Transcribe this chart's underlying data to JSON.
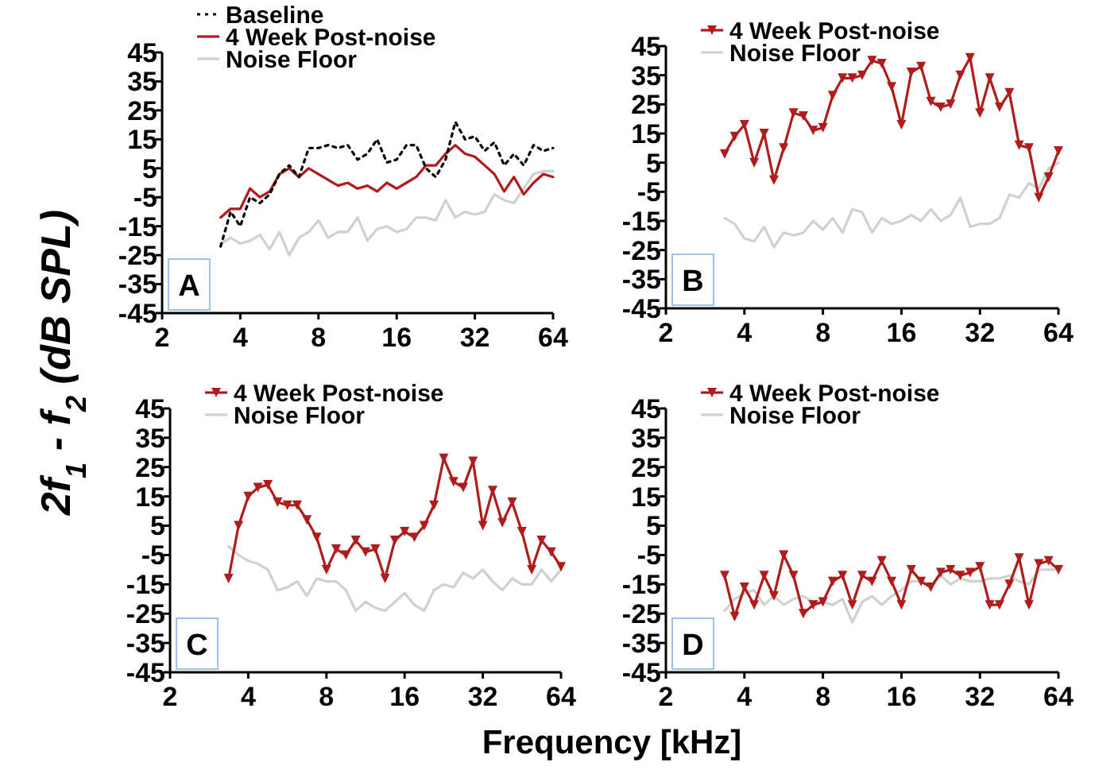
{
  "chart_data": [
    {
      "type": "line",
      "ylabel": "2f$_{1}$ - f$_{2}$ (dB SPL)",
      "annotations": [
        "A"
      ],
      "legend": "top left",
      "grid": false,
      "log": "x",
      "xlim": [
        2,
        64
      ],
      "xticks": [
        2,
        4,
        8,
        16,
        32,
        64
      ],
      "ylim": [
        -45,
        45
      ],
      "yticks": [
        -45,
        -35,
        -25,
        -15,
        -5,
        5,
        15,
        25,
        35,
        45
      ],
      "x": [
        3.36,
        3.67,
        4,
        4.36,
        4.76,
        5.19,
        5.66,
        6.17,
        6.73,
        7.34,
        8,
        8.72,
        9.51,
        10.37,
        11.31,
        12.34,
        13.45,
        14.67,
        16,
        17.45,
        19.03,
        20.75,
        22.63,
        24.68,
        26.91,
        29.34,
        32,
        34.9,
        38.05,
        41.5,
        45.25,
        49.35,
        53.82,
        58.69,
        64
      ],
      "series": [
        {
          "name": "Baseline",
          "color": "#000000",
          "line_style": "dotted",
          "marker": "none",
          "values": [
            -22,
            -10,
            -15,
            -5,
            -7,
            -4,
            3,
            6,
            2,
            12,
            12,
            13,
            12,
            13,
            8,
            10,
            15,
            7,
            8,
            13,
            13,
            5,
            2,
            8,
            21,
            15,
            16,
            11,
            14,
            6,
            10,
            6,
            13,
            11,
            12
          ]
        },
        {
          "name": "4 Week Post-noise",
          "color": "#b01c1c",
          "line_style": "solid",
          "marker": "none",
          "values": [
            -12,
            -9,
            -9,
            -2,
            -5,
            -3,
            3,
            5,
            2,
            5,
            3,
            1,
            -1,
            0,
            -2,
            -1,
            -3,
            0,
            -2,
            0,
            2,
            6,
            6,
            10,
            13,
            10,
            9,
            6,
            3,
            -3,
            2,
            -4,
            0,
            3,
            2
          ]
        },
        {
          "name": "Noise Floor",
          "color": "#d0d0d0",
          "line_style": "solid",
          "marker": "none",
          "values": [
            -21,
            -19,
            -21,
            -20,
            -18,
            -23,
            -17,
            -25,
            -19,
            -17,
            -13,
            -19,
            -17,
            -17,
            -12,
            -20,
            -16,
            -15,
            -17,
            -16,
            -12,
            -12,
            -13,
            -6,
            -12,
            -10,
            -11,
            -10,
            -4,
            -6,
            -7,
            -2,
            3,
            4,
            4
          ]
        }
      ]
    },
    {
      "type": "line",
      "annotations": [
        "B"
      ],
      "legend": "top left",
      "grid": false,
      "log": "x",
      "xlim": [
        2,
        64
      ],
      "xticks": [
        2,
        4,
        8,
        16,
        32,
        64
      ],
      "ylim": [
        -45,
        45
      ],
      "yticks": [
        -45,
        -35,
        -25,
        -15,
        -5,
        5,
        15,
        25,
        35,
        45
      ],
      "x": [
        3.36,
        3.67,
        4,
        4.36,
        4.76,
        5.19,
        5.66,
        6.17,
        6.73,
        7.34,
        8,
        8.72,
        9.51,
        10.37,
        11.31,
        12.34,
        13.45,
        14.67,
        16,
        17.45,
        19.03,
        20.75,
        22.63,
        24.68,
        26.91,
        29.34,
        32,
        34.9,
        38.05,
        41.5,
        45.25,
        49.35,
        53.82,
        58.69,
        64
      ],
      "series": [
        {
          "name": "4 Week Post-noise",
          "color": "#b01c1c",
          "line_style": "solid",
          "marker": "triangle",
          "values": [
            8,
            14,
            18,
            5,
            15,
            -1,
            10,
            22,
            21,
            16,
            17,
            28,
            34,
            34,
            35,
            40,
            39,
            31,
            18,
            36,
            38,
            26,
            24,
            25,
            35,
            41,
            22,
            34,
            24,
            29,
            11,
            10,
            -7,
            0,
            9
          ]
        },
        {
          "name": "Noise Floor",
          "color": "#d0d0d0",
          "line_style": "solid",
          "marker": "none",
          "values": [
            -14,
            -16,
            -21,
            -22,
            -17,
            -24,
            -19,
            -20,
            -19,
            -15,
            -18,
            -14,
            -19,
            -11,
            -12,
            -19,
            -14,
            -16,
            -15,
            -13,
            -15,
            -11,
            -15,
            -13,
            -7,
            -17,
            -16,
            -16,
            -14,
            -6,
            -7,
            -2,
            -4,
            3,
            5
          ]
        }
      ]
    },
    {
      "type": "line",
      "xlabel": "Frequency [kHz]",
      "annotations": [
        "C"
      ],
      "legend": "top left",
      "grid": false,
      "log": "x",
      "xlim": [
        2,
        64
      ],
      "xticks": [
        2,
        4,
        8,
        16,
        32,
        64
      ],
      "ylim": [
        -45,
        45
      ],
      "yticks": [
        -45,
        -35,
        -25,
        -15,
        -5,
        5,
        15,
        25,
        35,
        45
      ],
      "x": [
        3.36,
        3.67,
        4,
        4.36,
        4.76,
        5.19,
        5.66,
        6.17,
        6.73,
        7.34,
        8,
        8.72,
        9.51,
        10.37,
        11.31,
        12.34,
        13.45,
        14.67,
        16,
        17.45,
        19.03,
        20.75,
        22.63,
        24.68,
        26.91,
        29.34,
        32,
        34.9,
        38.05,
        41.5,
        45.25,
        49.35,
        53.82,
        58.69,
        64
      ],
      "series": [
        {
          "name": "4 Week Post-noise",
          "color": "#b01c1c",
          "line_style": "solid",
          "marker": "triangle",
          "values": [
            -13,
            5,
            15,
            18,
            19,
            13,
            12,
            12,
            7,
            1,
            -10,
            -3,
            -5,
            0,
            -4,
            -3,
            -13,
            0,
            3,
            1,
            5,
            12,
            28,
            20,
            18,
            27,
            5,
            17,
            6,
            13,
            3,
            -10,
            0,
            -4,
            -9
          ]
        },
        {
          "name": "Noise Floor",
          "color": "#d0d0d0",
          "line_style": "solid",
          "marker": "none",
          "values": [
            -2,
            -5,
            -7,
            -8,
            -10,
            -17,
            -16,
            -14,
            -19,
            -13,
            -14,
            -14,
            -17,
            -24,
            -21,
            -23,
            -24,
            -21,
            -18,
            -22,
            -24,
            -17,
            -15,
            -16,
            -11,
            -13,
            -10,
            -14,
            -17,
            -13,
            -15,
            -15,
            -10,
            -14,
            -10
          ]
        }
      ]
    },
    {
      "type": "line",
      "annotations": [
        "D"
      ],
      "legend": "top left",
      "grid": false,
      "log": "x",
      "xlim": [
        2,
        64
      ],
      "xticks": [
        2,
        4,
        8,
        16,
        32,
        64
      ],
      "ylim": [
        -45,
        45
      ],
      "yticks": [
        -45,
        -35,
        -25,
        -15,
        -5,
        5,
        15,
        25,
        35,
        45
      ],
      "x": [
        3.36,
        3.67,
        4,
        4.36,
        4.76,
        5.19,
        5.66,
        6.17,
        6.73,
        7.34,
        8,
        8.72,
        9.51,
        10.37,
        11.31,
        12.34,
        13.45,
        14.67,
        16,
        17.45,
        19.03,
        20.75,
        22.63,
        24.68,
        26.91,
        29.34,
        32,
        34.9,
        38.05,
        41.5,
        45.25,
        49.35,
        53.82,
        58.69,
        64
      ],
      "series": [
        {
          "name": "4 Week Post-noise",
          "color": "#b01c1c",
          "line_style": "solid",
          "marker": "triangle",
          "values": [
            -12,
            -26,
            -16,
            -22,
            -12,
            -19,
            -5,
            -12,
            -25,
            -22,
            -21,
            -14,
            -12,
            -22,
            -12,
            -14,
            -7,
            -14,
            -22,
            -10,
            -14,
            -16,
            -11,
            -10,
            -12,
            -11,
            -9,
            -22,
            -22,
            -15,
            -6,
            -22,
            -8,
            -7,
            -10
          ]
        },
        {
          "name": "Noise Floor",
          "color": "#d0d0d0",
          "line_style": "solid",
          "marker": "none",
          "values": [
            -24,
            -20,
            -18,
            -17,
            -22,
            -19,
            -22,
            -20,
            -19,
            -21,
            -21,
            -22,
            -20,
            -28,
            -21,
            -19,
            -22,
            -19,
            -17,
            -14,
            -14,
            -16,
            -12,
            -15,
            -13,
            -14,
            -14,
            -13,
            -13,
            -12,
            -14,
            -15,
            -10,
            -10,
            -10
          ]
        }
      ]
    }
  ]
}
